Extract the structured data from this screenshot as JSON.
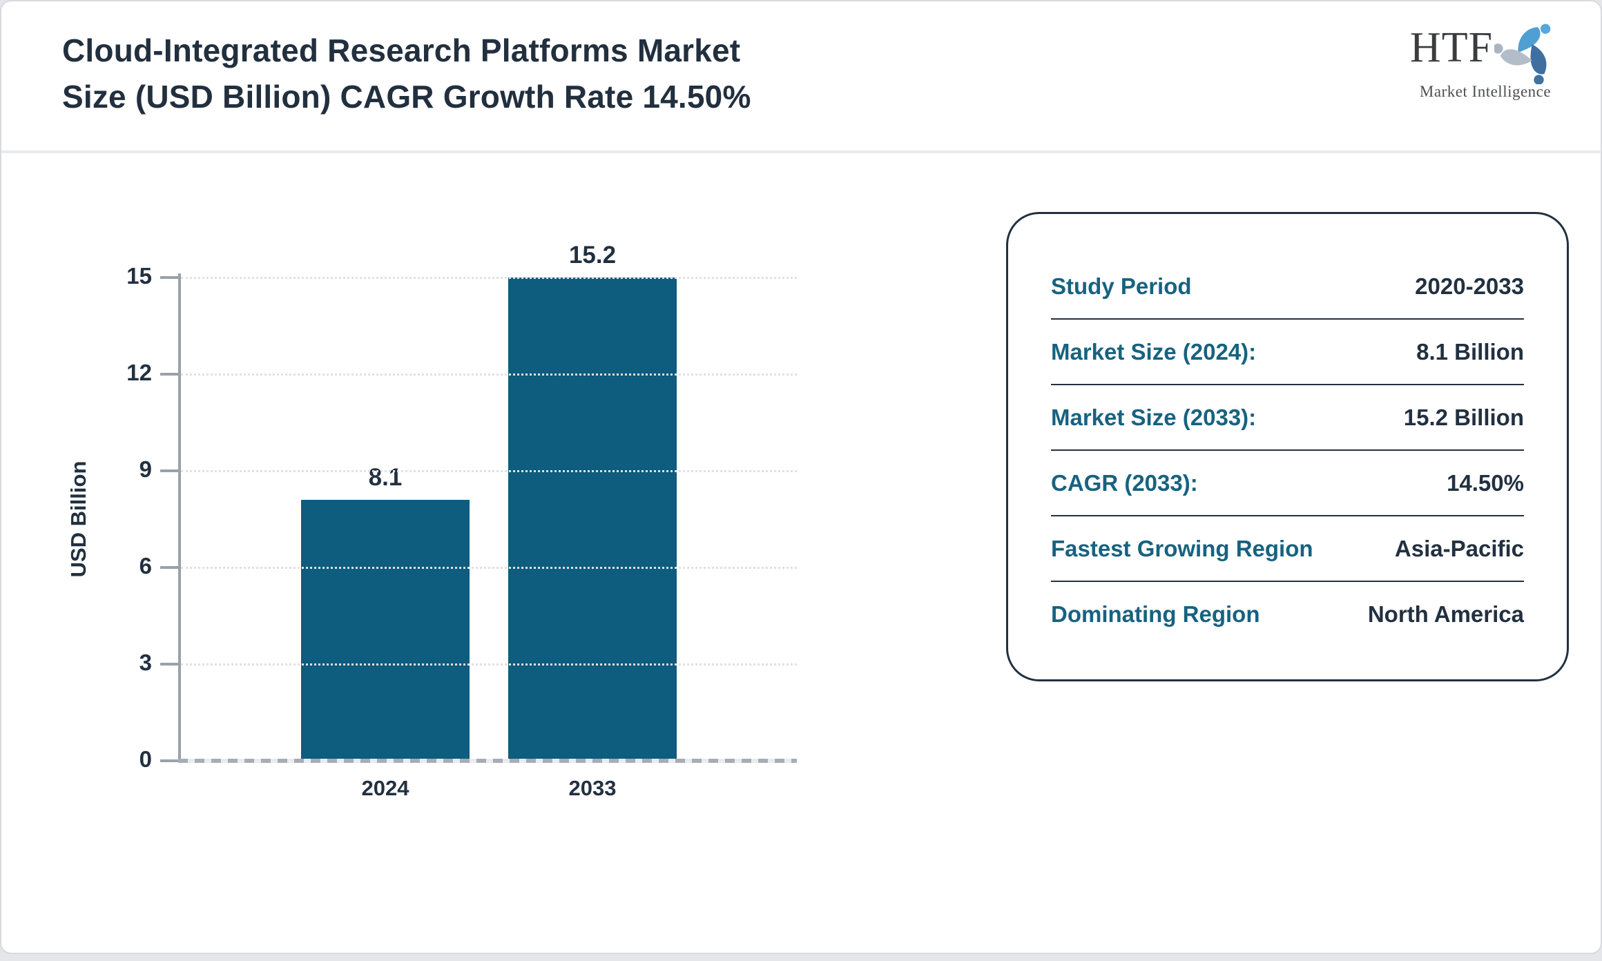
{
  "header": {
    "title_line1": "Cloud-Integrated Research Platforms Market",
    "title_line2": "Size (USD Billion) CAGR Growth Rate 14.50%",
    "logo": {
      "text": "HTF",
      "subtext": "Market Intelligence",
      "icon": "swirl-figures-icon"
    }
  },
  "chart_data": {
    "type": "bar",
    "title": "Cloud-Integrated Research Platforms Market Size (USD Billion) CAGR Growth Rate 14.50%",
    "categories": [
      "2024",
      "2033"
    ],
    "values": [
      8.1,
      15.2
    ],
    "bar_labels": [
      "8.1",
      "15.2"
    ],
    "xlabel": "",
    "ylabel": "USD Billion",
    "yticks": [
      0,
      3,
      6,
      9,
      12,
      15
    ],
    "ylim": [
      0,
      15
    ],
    "grid": "horizontal-dotted",
    "legend": "none",
    "bar_color": "#0e5c7e"
  },
  "info_panel": {
    "rows": [
      {
        "label": "Study Period",
        "value": "2020-2033"
      },
      {
        "label": "Market Size (2024):",
        "value": "8.1 Billion"
      },
      {
        "label": "Market Size (2033):",
        "value": "15.2 Billion"
      },
      {
        "label": "CAGR (2033):",
        "value": "14.50%"
      },
      {
        "label": "Fastest Growing Region",
        "value": "Asia-Pacific"
      },
      {
        "label": "Dominating Region",
        "value": "North America"
      }
    ]
  },
  "colors": {
    "title_text": "#222f3e",
    "accent_teal": "#176280",
    "bar_fill": "#0e5c7e",
    "axis_gray": "#9aa1a9",
    "gridline": "#e1e1e1",
    "panel_border": "#223040",
    "logo_lightblue": "#4f9fd3",
    "logo_steelblue": "#3e6f9f",
    "logo_gray": "#b2bdc8"
  }
}
